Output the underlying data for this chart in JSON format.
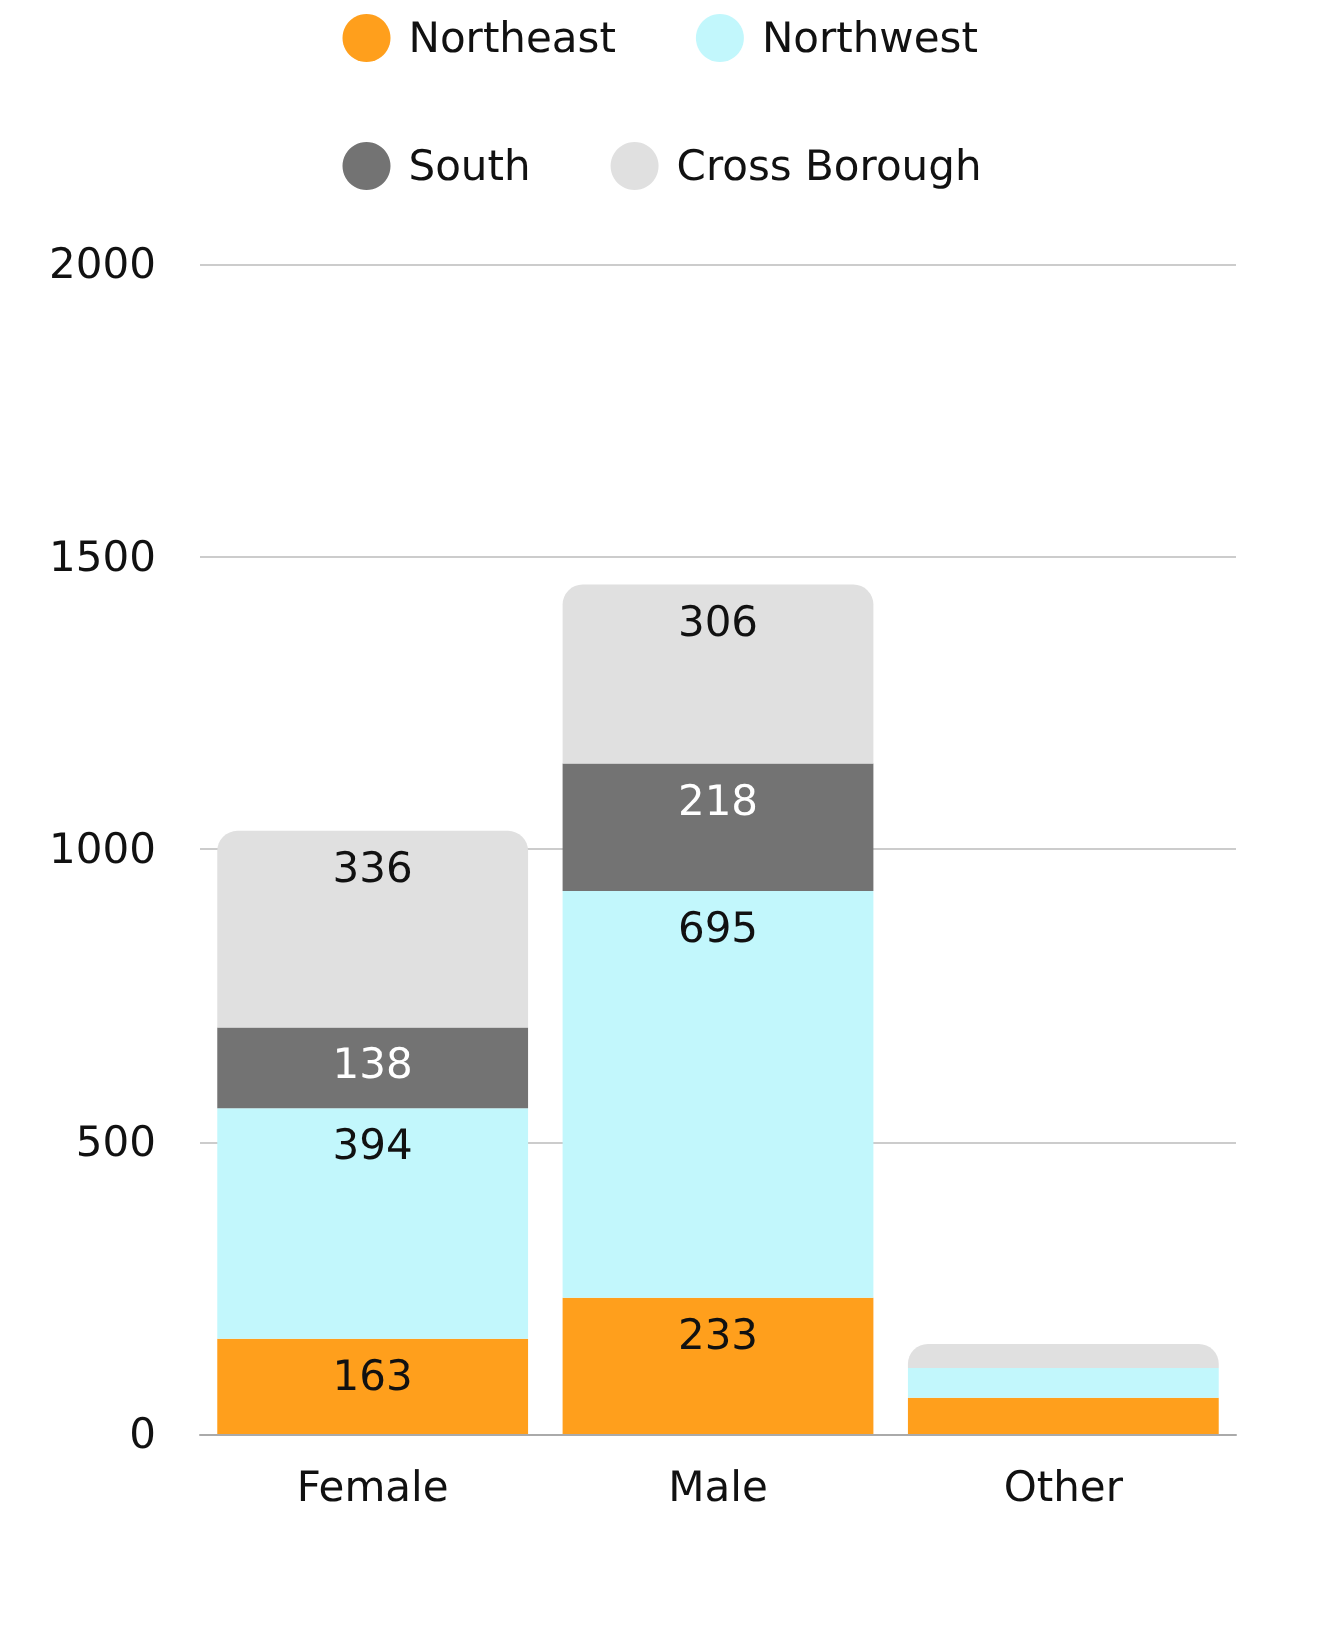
{
  "chart_data": {
    "type": "bar",
    "stacked": true,
    "categories": [
      "Female",
      "Male",
      "Other"
    ],
    "series": [
      {
        "name": "Northeast",
        "color": "#ff9f1c",
        "values": [
          163,
          233,
          62
        ],
        "value_labels": [
          "163",
          "233",
          null
        ]
      },
      {
        "name": "Northwest",
        "color": "#c2f7fc",
        "values": [
          394,
          695,
          51
        ],
        "value_labels": [
          "394",
          "695",
          null
        ]
      },
      {
        "name": "South",
        "color": "#737373",
        "values": [
          138,
          218,
          0
        ],
        "value_labels": [
          "138",
          "218",
          null
        ]
      },
      {
        "name": "Cross Borough",
        "color": "#e0e0e0",
        "values": [
          336,
          306,
          41
        ],
        "value_labels": [
          "336",
          "306",
          null
        ]
      }
    ],
    "ylim": [
      0,
      2000
    ],
    "yticks": [
      0,
      500,
      1000,
      1500,
      2000
    ],
    "grid": "y",
    "legend": "top"
  }
}
